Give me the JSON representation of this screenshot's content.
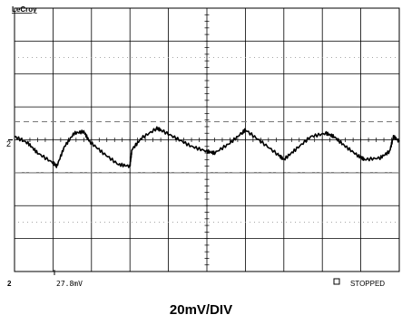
{
  "scope": {
    "brand": "LeCroy",
    "channel_marker": "2",
    "trigger_readout": "27.8mV",
    "status": "STOPPED",
    "ground_marker": "2"
  },
  "caption": "20mV/DIV",
  "chart_data": {
    "type": "line",
    "title": "",
    "xlabel": "",
    "ylabel": "",
    "grid": true,
    "x_divisions": 10,
    "y_divisions": 8,
    "volts_per_div": "20mV/DIV",
    "y_unit": "divisions from center",
    "xlim": [
      0,
      10
    ],
    "ylim": [
      -4,
      4
    ],
    "series": [
      {
        "name": "",
        "x": [
          0.0,
          0.35,
          0.6,
          1.0,
          1.1,
          1.3,
          1.55,
          1.8,
          1.95,
          2.3,
          2.7,
          3.0,
          3.05,
          3.3,
          3.7,
          3.8,
          4.2,
          4.6,
          5.0,
          5.2,
          5.6,
          5.95,
          6.0,
          6.4,
          6.85,
          7.0,
          7.3,
          7.7,
          8.1,
          8.3,
          8.6,
          8.95,
          9.1,
          9.5,
          9.75,
          9.85,
          10.0
        ],
        "y": [
          0.1,
          -0.1,
          -0.4,
          -0.7,
          -0.8,
          -0.2,
          0.2,
          0.25,
          -0.05,
          -0.4,
          -0.75,
          -0.8,
          -0.3,
          0.05,
          0.35,
          0.3,
          0.05,
          -0.2,
          -0.35,
          -0.4,
          -0.1,
          0.25,
          0.3,
          -0.05,
          -0.45,
          -0.6,
          -0.3,
          0.1,
          0.2,
          0.1,
          -0.2,
          -0.5,
          -0.6,
          -0.55,
          -0.35,
          0.1,
          -0.05
        ]
      }
    ],
    "reference_lines": [
      {
        "name": "upper-dashed-level",
        "y": 0.55,
        "style": "dashed"
      },
      {
        "name": "lower-dashdot-level",
        "y": -1.0,
        "style": "dashdot"
      }
    ]
  }
}
